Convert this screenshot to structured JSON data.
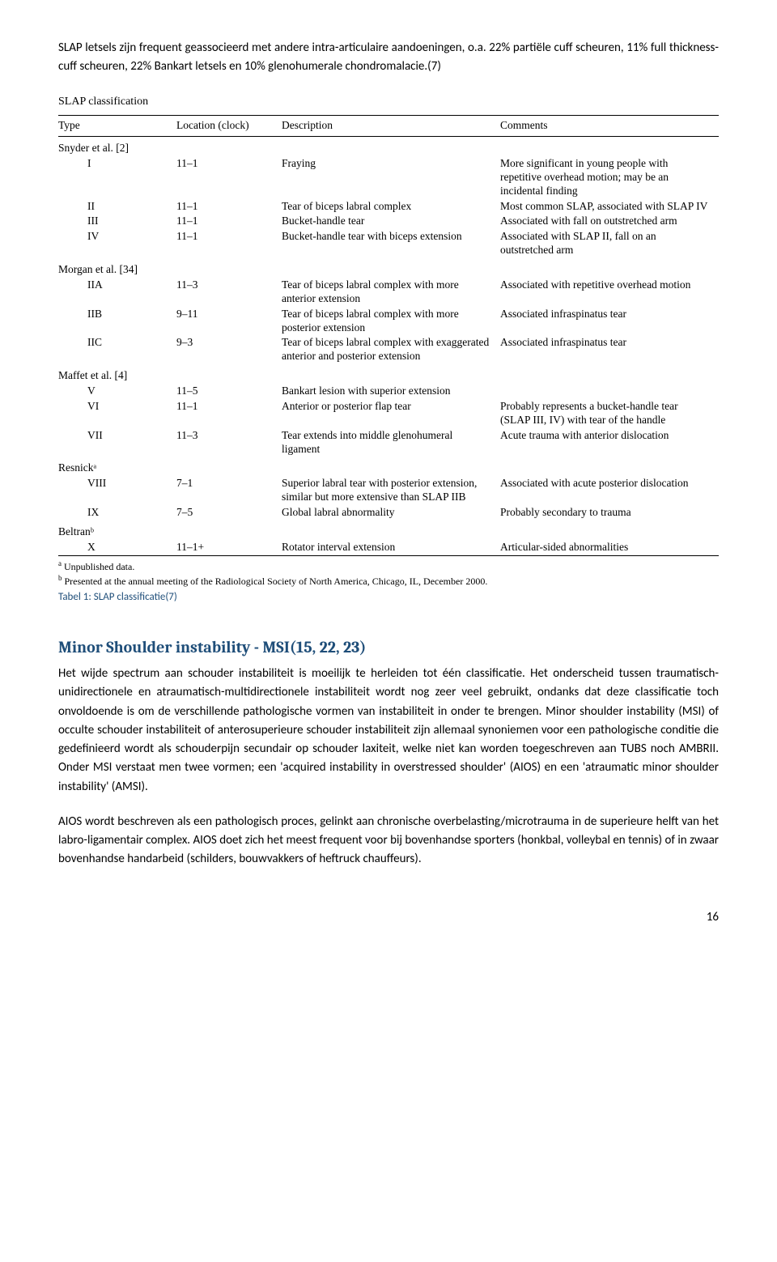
{
  "intro_para": "SLAP letsels zijn frequent geassocieerd met andere intra-articulaire aandoeningen, o.a. 22% partiële cuff scheuren, 11% full thickness-cuff scheuren, 22% Bankart letsels en 10% glenohumerale chondromalacie.(7)",
  "table_title": "SLAP classification",
  "table_headers": [
    "Type",
    "Location (clock)",
    "Description",
    "Comments"
  ],
  "sections": [
    {
      "author": "Snyder et al. [2]",
      "rows": [
        [
          "I",
          "11–1",
          "Fraying",
          "More significant in young people with repetitive overhead motion; may be an incidental finding"
        ],
        [
          "II",
          "11–1",
          "Tear of biceps labral complex",
          "Most common SLAP, associated with SLAP IV"
        ],
        [
          "III",
          "11–1",
          "Bucket-handle tear",
          "Associated with fall on outstretched arm"
        ],
        [
          "IV",
          "11–1",
          "Bucket-handle tear with biceps extension",
          "Associated with SLAP II, fall on an outstretched arm"
        ]
      ]
    },
    {
      "author": "Morgan et al. [34]",
      "rows": [
        [
          "IIA",
          "11–3",
          "Tear of biceps labral complex with more anterior extension",
          "Associated with repetitive overhead motion"
        ],
        [
          "IIB",
          "9–11",
          "Tear of biceps labral complex with more posterior extension",
          "Associated infraspinatus tear"
        ],
        [
          "IIC",
          "9–3",
          "Tear of biceps labral complex with exaggerated anterior and posterior extension",
          "Associated infraspinatus tear"
        ]
      ]
    },
    {
      "author": "Maffet et al. [4]",
      "rows": [
        [
          "V",
          "11–5",
          "Bankart lesion with superior extension",
          ""
        ],
        [
          "VI",
          "11–1",
          "Anterior or posterior flap tear",
          "Probably represents a bucket-handle tear (SLAP III, IV) with tear of the handle"
        ],
        [
          "VII",
          "11–3",
          "Tear extends into middle glenohumeral ligament",
          "Acute trauma with anterior dislocation"
        ]
      ]
    },
    {
      "author": "Resnickᵃ",
      "rows": [
        [
          "VIII",
          "7–1",
          "Superior labral tear with posterior extension, similar but more extensive than SLAP IIB",
          "Associated with acute posterior dislocation"
        ],
        [
          "IX",
          "7–5",
          "Global labral abnormality",
          "Probably secondary to trauma"
        ]
      ]
    },
    {
      "author": "Beltranᵇ",
      "rows": [
        [
          "X",
          "11–1+",
          "Rotator interval extension",
          "Articular-sided abnormalities"
        ]
      ]
    }
  ],
  "footnote_a": "Unpublished data.",
  "footnote_b": "Presented at the annual meeting of the Radiological Society of North America, Chicago, IL, December 2000.",
  "caption": "Tabel 1: SLAP classificatie(7)",
  "heading": "Minor Shoulder instability - MSI(15, 22, 23)",
  "body_para_1": "Het wijde spectrum aan schouder instabiliteit is moeilijk te herleiden tot één classificatie. Het onderscheid tussen traumatisch-unidirectionele en atraumatisch-multidirectionele instabiliteit wordt nog zeer veel gebruikt, ondanks dat deze classificatie toch onvoldoende is om de verschillende pathologische vormen van instabiliteit in onder te brengen. Minor shoulder instability (MSI) of occulte schouder instabiliteit of anterosuperieure schouder instabiliteit zijn allemaal synoniemen voor een pathologische conditie die gedefinieerd wordt als schouderpijn secundair op schouder laxiteit, welke niet kan worden toegeschreven aan TUBS noch AMBRII. Onder MSI verstaat men twee vormen; een 'acquired instability in overstressed shoulder' (AIOS) en een 'atraumatic minor shoulder instability' (AMSI).",
  "body_para_2": "AIOS wordt beschreven als een pathologisch proces, gelinkt aan chronische overbelasting/microtrauma in de superieure helft van het labro-ligamentair complex. AIOS doet zich het meest frequent voor bij bovenhandse sporters (honkbal, volleybal en tennis) of in zwaar bovenhandse handarbeid (schilders, bouwvakkers of heftruck chauffeurs).",
  "page_number": "16"
}
